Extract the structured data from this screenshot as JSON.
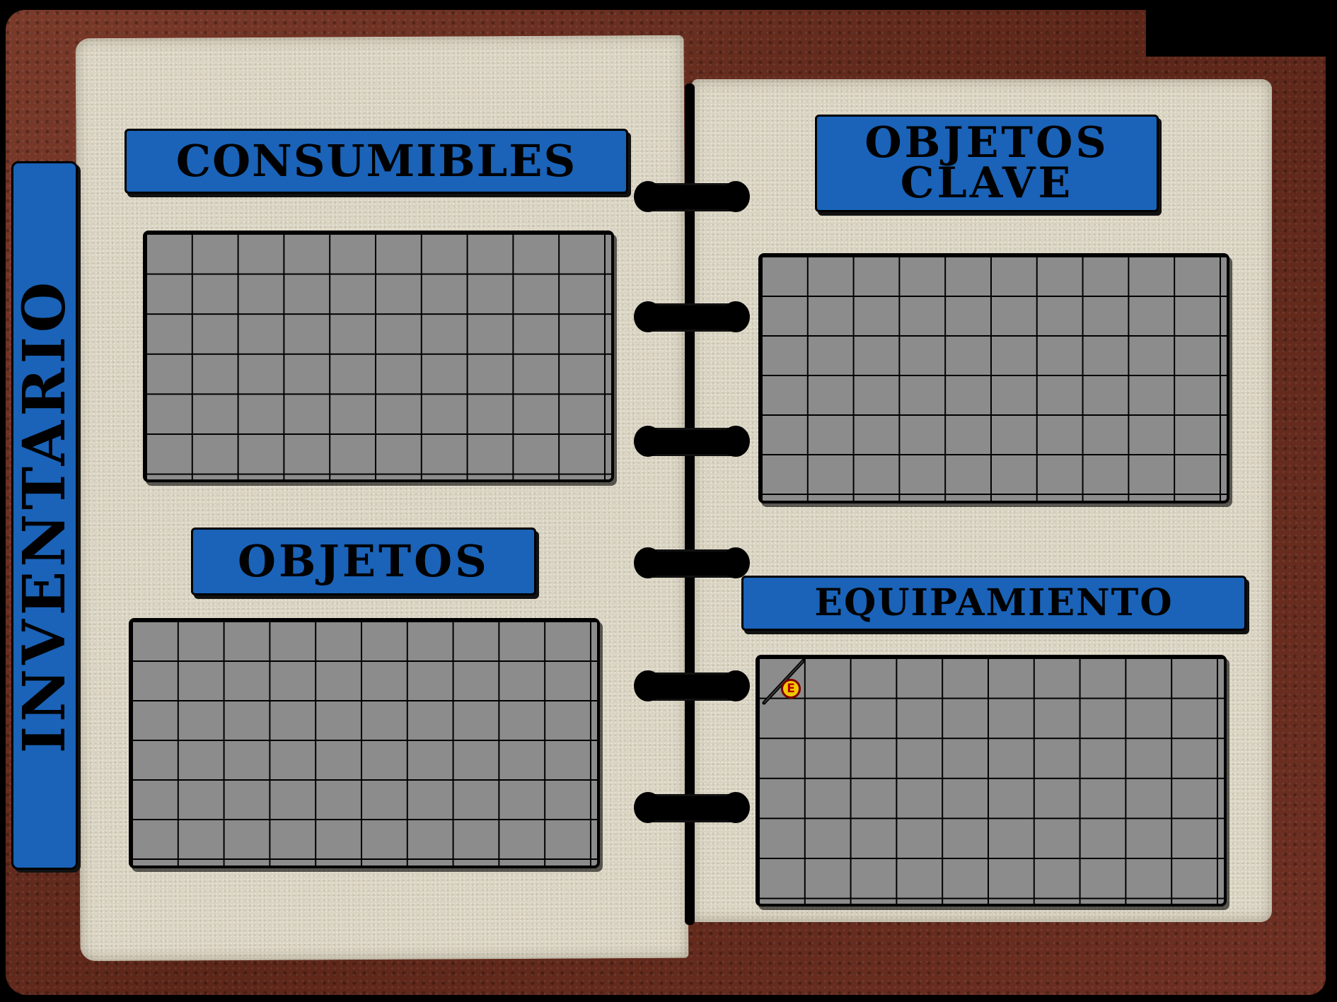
{
  "side_tab": {
    "title": "INVENTARIO"
  },
  "sections": {
    "consumibles": {
      "title": "CONSUMIBLES",
      "columns": 10,
      "rows": 6
    },
    "objetos": {
      "title": "OBJETOS",
      "columns": 10,
      "rows": 6
    },
    "objetos_clave": {
      "title_line1": "OBJETOS",
      "title_line2": "CLAVE",
      "columns": 10,
      "rows": 6
    },
    "equipamiento": {
      "title": "EQUIPAMIENTO",
      "columns": 10,
      "rows": 6,
      "equipped_item": {
        "slot": 1,
        "icon": "staff-icon",
        "badge": "E"
      }
    }
  },
  "colors": {
    "banner": "#1a63b8",
    "slot": "#8c8c8c",
    "cover": "#6e3022",
    "paper": "#d9d3c1"
  }
}
